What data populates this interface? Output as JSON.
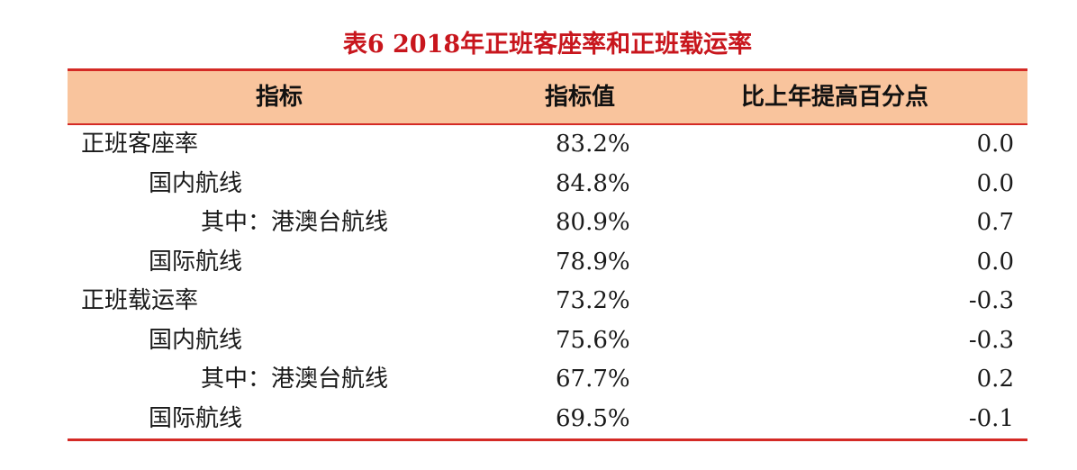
{
  "title": "表6  2018年正班客座率和正班载运率",
  "header": {
    "indicator": "指标",
    "value": "指标值",
    "change": "比上年提高百分点"
  },
  "rows": [
    {
      "name": "正班客座率",
      "value": "83.2%",
      "change": "0.0",
      "indent": 0
    },
    {
      "name": "国内航线",
      "value": "84.8%",
      "change": "0.0",
      "indent": 1
    },
    {
      "name": "其中：港澳台航线",
      "value": "80.9%",
      "change": "0.7",
      "indent": 2
    },
    {
      "name": "国际航线",
      "value": "78.9%",
      "change": "0.0",
      "indent": 1
    },
    {
      "name": "正班载运率",
      "value": "73.2%",
      "change": "-0.3",
      "indent": 0
    },
    {
      "name": "国内航线",
      "value": "75.6%",
      "change": "-0.3",
      "indent": 1
    },
    {
      "name": "其中：港澳台航线",
      "value": "67.7%",
      "change": "0.2",
      "indent": 2
    },
    {
      "name": "国际航线",
      "value": "69.5%",
      "change": "-0.1",
      "indent": 1
    }
  ],
  "colors": {
    "title": "#c8161d",
    "rule": "#d42a25",
    "header_bg": "#f9c49d"
  }
}
